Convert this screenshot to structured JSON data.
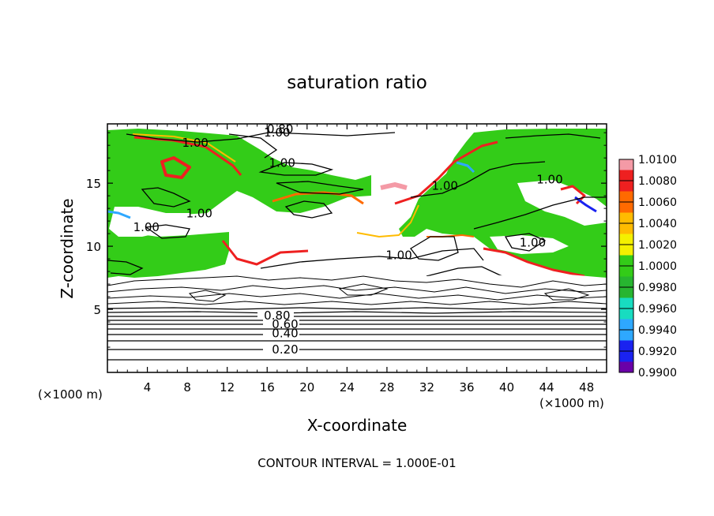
{
  "chart_data": {
    "type": "heatmap",
    "title": "saturation ratio",
    "xlabel": "X-coordinate",
    "ylabel": "Z-coordinate",
    "x_unit_label": "(×1000 m)",
    "x_unit_label_right": "(×1000 m)",
    "x_ticks": [
      4,
      8,
      12,
      16,
      20,
      24,
      28,
      32,
      36,
      40,
      44,
      48
    ],
    "y_ticks": [
      5,
      10,
      15
    ],
    "xlim": [
      0,
      50
    ],
    "ylim": [
      0,
      19.7
    ],
    "grid": false,
    "footer": "CONTOUR INTERVAL = 1.000E-01",
    "colorbar": {
      "labels": [
        "1.0100",
        "1.0080",
        "1.0060",
        "1.0040",
        "1.0020",
        "1.0000",
        "0.9980",
        "0.9960",
        "0.9940",
        "0.9920",
        "0.9900"
      ],
      "colors": [
        "#f49aa6",
        "#ee2020",
        "#ff6a00",
        "#ffbb00",
        "#f4f000",
        "#33cc18",
        "#27b530",
        "#18dcc0",
        "#2ea8ff",
        "#1a22f0",
        "#6a00a8"
      ]
    },
    "contour_labels": [
      {
        "text": "0.20",
        "x": 17.8,
        "z": 1.8
      },
      {
        "text": "0.40",
        "x": 17.8,
        "z": 3.1
      },
      {
        "text": "0.60",
        "x": 17.8,
        "z": 3.8
      },
      {
        "text": "0.80",
        "x": 17.0,
        "z": 4.5
      },
      {
        "text": "1.00",
        "x": 8.8,
        "z": 18.2
      },
      {
        "text": "1.00",
        "x": 17.5,
        "z": 16.6
      },
      {
        "text": "1.00",
        "x": 9.2,
        "z": 12.6
      },
      {
        "text": "1.00",
        "x": 3.9,
        "z": 11.5
      },
      {
        "text": "1.00",
        "x": 29.2,
        "z": 9.3
      },
      {
        "text": "1.00",
        "x": 33.8,
        "z": 14.8
      },
      {
        "text": "1.00",
        "x": 42.6,
        "z": 10.3
      },
      {
        "text": "1.00",
        "x": 44.3,
        "z": 15.3
      },
      {
        "text": "0.80",
        "x": 17.3,
        "z": 19.3
      },
      {
        "text": "1.00",
        "x": 17.0,
        "z": 19.0
      }
    ]
  }
}
